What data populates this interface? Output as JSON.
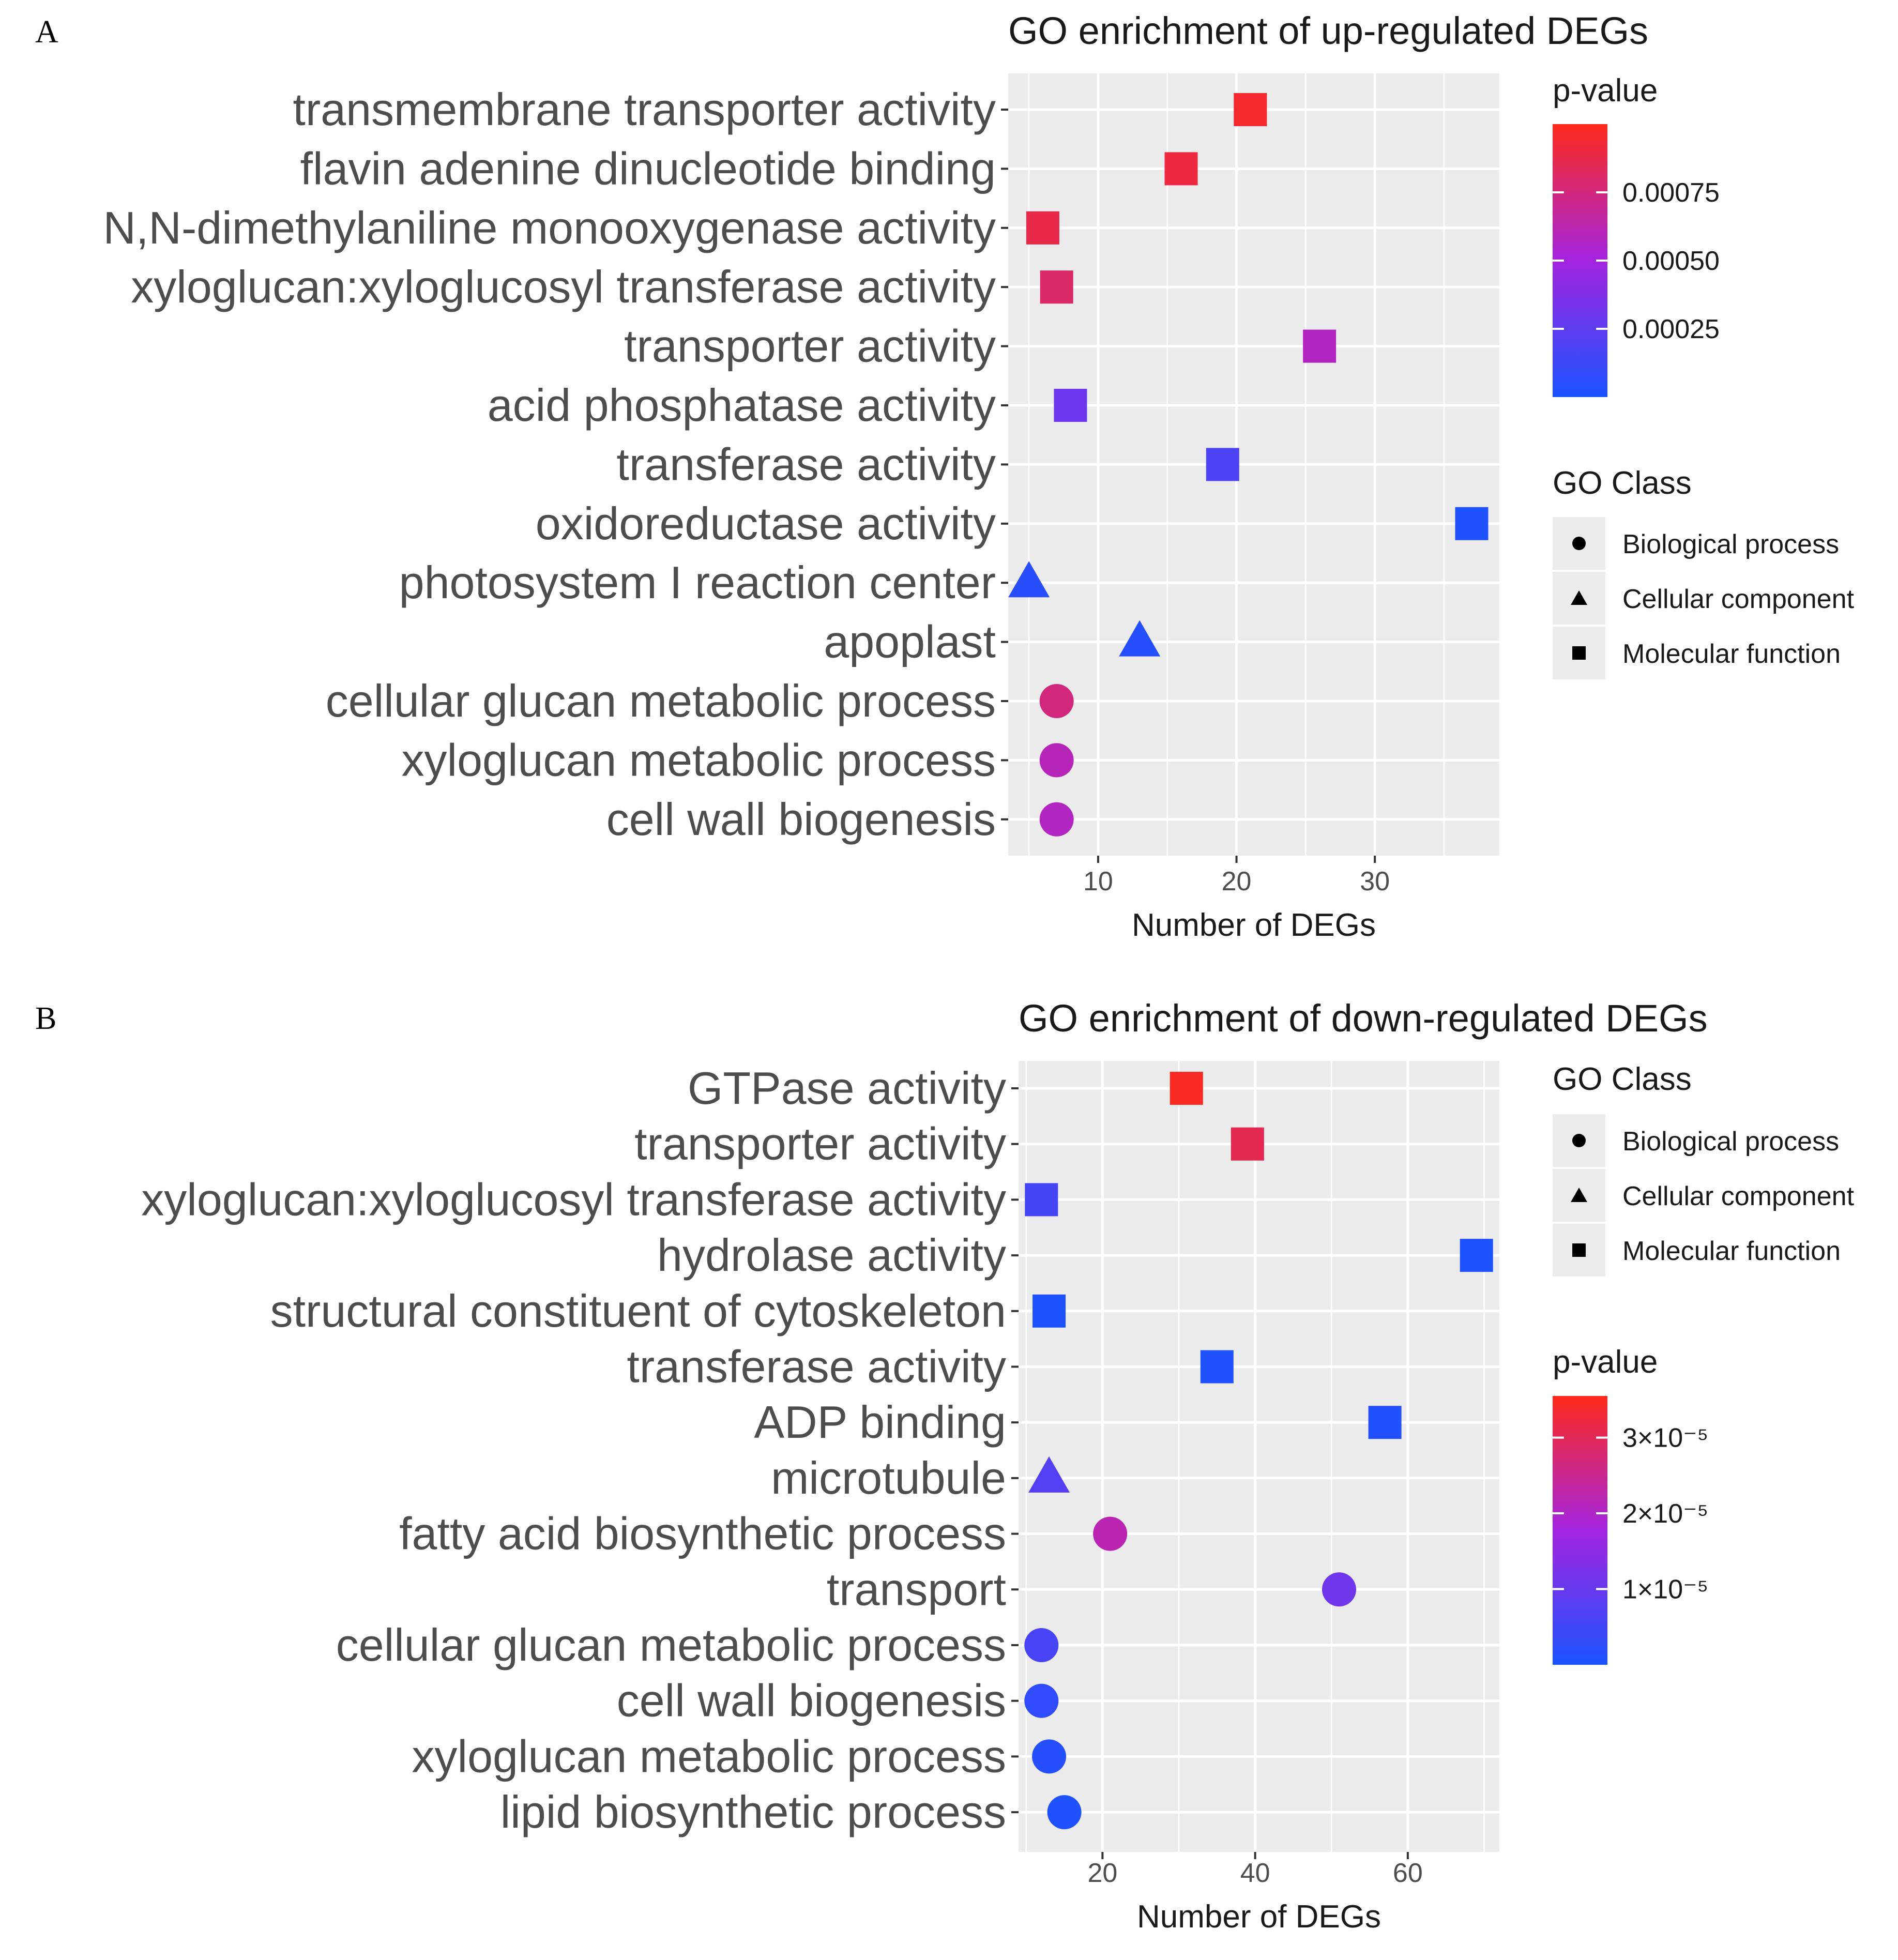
{
  "chart_data": [
    {
      "panel_label": "A",
      "type": "scatter",
      "title": "GO enrichment of up-regulated DEGs",
      "xlabel": "Number of DEGs",
      "ylabel": "",
      "xlim": [
        3.5,
        39
      ],
      "xticks": [
        10,
        20,
        30
      ],
      "grid": true,
      "categories": [
        "transmembrane transporter activity",
        "flavin adenine dinucleotide binding",
        "N,N-dimethylaniline monooxygenase activity",
        "xyloglucan:xyloglucosyl transferase activity",
        "transporter activity",
        "acid phosphatase activity",
        "transferase activity",
        "oxidoreductase activity",
        "photosystem I reaction center",
        "apoplast",
        "cellular glucan metabolic process",
        "xyloglucan metabolic process",
        "cell wall biogenesis"
      ],
      "values": [
        21,
        16,
        6,
        7,
        26,
        8,
        19,
        37,
        5,
        13,
        7,
        7,
        7
      ],
      "go_class": [
        "Molecular function",
        "Molecular function",
        "Molecular function",
        "Molecular function",
        "Molecular function",
        "Molecular function",
        "Molecular function",
        "Molecular function",
        "Cellular component",
        "Cellular component",
        "Biological process",
        "Biological process",
        "Biological process"
      ],
      "p_values": [
        0.00095,
        0.0009,
        0.00088,
        0.0008,
        0.00058,
        0.0003,
        0.00018,
        2e-05,
        5e-05,
        4e-05,
        0.00075,
        0.0006,
        0.00058
      ],
      "color_scale": {
        "title": "p-value",
        "min": 0.0,
        "max": 0.001,
        "ticks": [
          0.00075,
          0.0005,
          0.00025
        ],
        "tick_labels": [
          "0.00075",
          "0.00050",
          "0.00025"
        ]
      },
      "shape_legend": {
        "title": "GO Class",
        "items": [
          "Biological process",
          "Cellular component",
          "Molecular function"
        ]
      },
      "legend_order": [
        "color",
        "shape"
      ]
    },
    {
      "panel_label": "B",
      "type": "scatter",
      "title": "GO enrichment of down-regulated DEGs",
      "xlabel": "Number of DEGs",
      "ylabel": "",
      "xlim": [
        9,
        72
      ],
      "xticks": [
        20,
        40,
        60
      ],
      "grid": true,
      "categories": [
        "GTPase activity",
        "transporter activity",
        "xyloglucan:xyloglucosyl transferase activity",
        "hydrolase activity",
        "structural constituent of cytoskeleton",
        "transferase activity",
        "ADP binding",
        "microtubule",
        "fatty acid biosynthetic process",
        "transport",
        "cellular glucan metabolic process",
        "cell wall biogenesis",
        "xyloglucan metabolic process",
        "lipid biosynthetic process"
      ],
      "values": [
        31,
        39,
        12,
        69,
        13,
        35,
        57,
        13,
        21,
        51,
        12,
        12,
        13,
        15
      ],
      "go_class": [
        "Molecular function",
        "Molecular function",
        "Molecular function",
        "Molecular function",
        "Molecular function",
        "Molecular function",
        "Molecular function",
        "Cellular component",
        "Biological process",
        "Biological process",
        "Biological process",
        "Biological process",
        "Biological process",
        "Biological process"
      ],
      "p_values": [
        3.45e-05,
        3.05e-05,
        5.5e-06,
        4e-07,
        5e-07,
        7e-07,
        1.2e-06,
        7.5e-06,
        2.2e-05,
        1.1e-05,
        6e-06,
        2.8e-06,
        1.5e-06,
        8e-07
      ],
      "color_scale": {
        "title": "p-value",
        "min": 0.0,
        "max": 3.55e-05,
        "ticks": [
          3e-05,
          2e-05,
          1e-05
        ],
        "tick_labels": [
          "3×10⁻⁵",
          "2×10⁻⁵",
          "1×10⁻⁵"
        ]
      },
      "shape_legend": {
        "title": "GO Class",
        "items": [
          "Biological process",
          "Cellular component",
          "Molecular function"
        ]
      },
      "legend_order": [
        "shape",
        "color"
      ]
    }
  ]
}
